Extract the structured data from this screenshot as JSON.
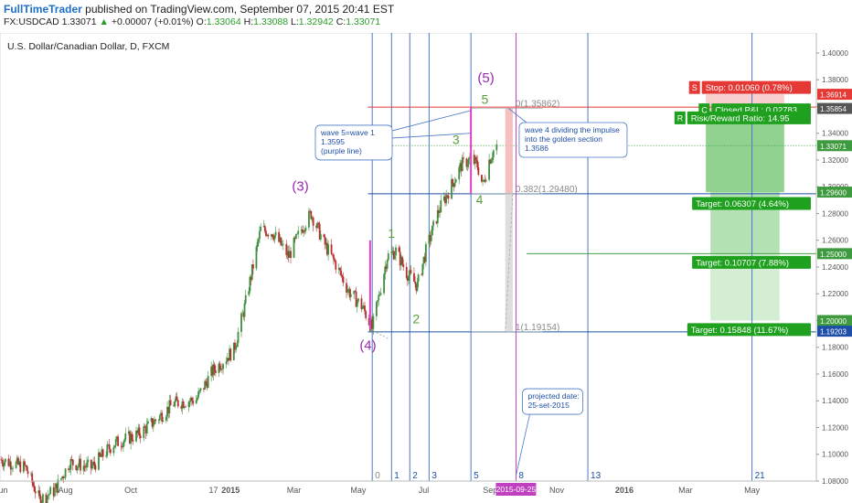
{
  "header": {
    "brand": "FullTimeTrader",
    "published": "published on TradingView.com, September 07, 2015 20:41 EST",
    "symbol": "FX:USDCAD",
    "last": "1.33071",
    "change": "+0.00007 (+0.01%)",
    "open_label": "O:",
    "open": "1.33064",
    "high_label": "H:",
    "high": "1.33088",
    "low_label": "L:",
    "low": "1.32942",
    "close_label": "C:",
    "close": "1.33071"
  },
  "chart_data": {
    "type": "candlestick",
    "title": "U.S. Dollar/Canadian Dollar, D, FXCM",
    "ylim": [
      1.08,
      1.415
    ],
    "y_ticks": [
      1.08,
      1.1,
      1.12,
      1.14,
      1.16,
      1.18,
      1.2,
      1.22,
      1.24,
      1.26,
      1.28,
      1.3,
      1.32,
      1.34,
      1.36,
      1.38,
      1.4
    ],
    "x_start": "2014-06-01",
    "x_end": "2016-07-01",
    "x_ticks": [
      {
        "label": "Jun",
        "date": "2014-06-02"
      },
      {
        "label": "Aug",
        "date": "2014-08-01"
      },
      {
        "label": "Oct",
        "date": "2014-10-01"
      },
      {
        "label": "17",
        "date": "2014-12-17"
      },
      {
        "label": "2015",
        "date": "2015-01-02"
      },
      {
        "label": "Mar",
        "date": "2015-03-02"
      },
      {
        "label": "May",
        "date": "2015-05-01"
      },
      {
        "label": "Jul",
        "date": "2015-07-01"
      },
      {
        "label": "Sep",
        "date": "2015-09-01"
      },
      {
        "label": "Nov",
        "date": "2015-11-02"
      },
      {
        "label": "2016",
        "date": "2016-01-04"
      },
      {
        "label": "Mar",
        "date": "2016-03-01"
      },
      {
        "label": "May",
        "date": "2016-05-02"
      }
    ],
    "date_badge": {
      "date": "2015-09-25",
      "label": "2015-09-25"
    },
    "price_path": [
      [
        "2014-06-02",
        1.096
      ],
      [
        "2014-06-25",
        1.09
      ],
      [
        "2014-07-08",
        1.066
      ],
      [
        "2014-07-22",
        1.073
      ],
      [
        "2014-08-05",
        1.094
      ],
      [
        "2014-08-25",
        1.09
      ],
      [
        "2014-09-15",
        1.108
      ],
      [
        "2014-10-08",
        1.115
      ],
      [
        "2014-10-22",
        1.124
      ],
      [
        "2014-11-10",
        1.138
      ],
      [
        "2014-12-01",
        1.141
      ],
      [
        "2014-12-16",
        1.162
      ],
      [
        "2015-01-05",
        1.178
      ],
      [
        "2015-01-15",
        1.21
      ],
      [
        "2015-01-30",
        1.268
      ],
      [
        "2015-02-10",
        1.266
      ],
      [
        "2015-02-25",
        1.248
      ],
      [
        "2015-03-10",
        1.27
      ],
      [
        "2015-03-18",
        1.28
      ],
      [
        "2015-03-30",
        1.258
      ],
      [
        "2015-04-10",
        1.242
      ],
      [
        "2015-04-22",
        1.222
      ],
      [
        "2015-05-05",
        1.21
      ],
      [
        "2015-05-14",
        1.194
      ],
      [
        "2015-05-28",
        1.248
      ],
      [
        "2015-06-05",
        1.252
      ],
      [
        "2015-06-15",
        1.236
      ],
      [
        "2015-06-25",
        1.226
      ],
      [
        "2015-07-03",
        1.252
      ],
      [
        "2015-07-15",
        1.282
      ],
      [
        "2015-07-30",
        1.306
      ],
      [
        "2015-08-05",
        1.316
      ],
      [
        "2015-08-14",
        1.321
      ],
      [
        "2015-08-20",
        1.316
      ],
      [
        "2015-08-25",
        1.301
      ],
      [
        "2015-08-31",
        1.32
      ],
      [
        "2015-09-04",
        1.327
      ],
      [
        "2015-09-07",
        1.3307
      ]
    ],
    "cycle_lines": [
      {
        "label": "0",
        "date": "2015-05-14"
      },
      {
        "label": "1",
        "date": "2015-06-01"
      },
      {
        "label": "2",
        "date": "2015-06-18"
      },
      {
        "label": "3",
        "date": "2015-07-06"
      },
      {
        "label": "5",
        "date": "2015-08-14"
      },
      {
        "label": "8",
        "date": "2015-09-25"
      },
      {
        "label": "13",
        "date": "2015-12-01"
      },
      {
        "label": "21",
        "date": "2016-05-02"
      }
    ],
    "wave_labels": [
      {
        "text": "(3)",
        "date": "2015-03-08",
        "y": 1.297,
        "color": "#9c27b0",
        "size": 15
      },
      {
        "text": "(4)",
        "date": "2015-05-10",
        "y": 1.178,
        "color": "#9c27b0",
        "size": 15
      },
      {
        "text": "(5)",
        "date": "2015-08-28",
        "y": 1.378,
        "color": "#9c27b0",
        "size": 15
      },
      {
        "text": "1",
        "date": "2015-06-01",
        "y": 1.262,
        "color": "#5a9e3a",
        "size": 14
      },
      {
        "text": "2",
        "date": "2015-06-24",
        "y": 1.198,
        "color": "#5a9e3a",
        "size": 14
      },
      {
        "text": "3",
        "date": "2015-07-31",
        "y": 1.332,
        "color": "#5a9e3a",
        "size": 14
      },
      {
        "text": "4",
        "date": "2015-08-22",
        "y": 1.287,
        "color": "#5a9e3a",
        "size": 14
      },
      {
        "text": "5",
        "date": "2015-08-27",
        "y": 1.362,
        "color": "#5a9e3a",
        "size": 14
      }
    ],
    "wave_segments": [
      {
        "from_date": "2015-05-12",
        "from_y": 1.1935,
        "to_date": "2015-05-12",
        "to_y": 1.26
      },
      {
        "from_date": "2015-08-14",
        "from_y": 1.2948,
        "to_date": "2015-08-14",
        "to_y": 1.3595
      }
    ],
    "fib_levels": [
      {
        "label": "0(1.35862)",
        "value": 1.35862
      },
      {
        "label": "0.382(1.29480)",
        "value": 1.2948
      },
      {
        "label": "1(1.19154)",
        "value": 1.19154
      }
    ],
    "levels": [
      {
        "value": 1.3595,
        "color": "#e53935"
      },
      {
        "value": 1.2948,
        "color": "#1e4fa8"
      },
      {
        "value": 1.19154,
        "color": "#1e4fa8"
      },
      {
        "value": 1.25,
        "color": "#43a047"
      },
      {
        "value": 1.33071,
        "color": "#43a047"
      }
    ],
    "position": {
      "from_date": "2016-03-20",
      "to_date": "2016-06-01",
      "entry": 1.3505,
      "stop": 1.3691,
      "targets": [
        1.296,
        1.25,
        1.2
      ]
    },
    "callouts": [
      {
        "lines": [
          "wave 5=wave 1",
          "1.3595",
          "(purple line)"
        ],
        "date": "2015-03-22",
        "y": 1.346
      },
      {
        "lines": [
          "wave 4 dividing the impulse",
          "into the golden section",
          "1.3586"
        ],
        "date": "2015-09-28",
        "y": 1.348
      },
      {
        "lines": [
          "projected date:",
          "25-set-2015"
        ],
        "date": "2015-10-01",
        "y": 1.149
      }
    ],
    "price_badges": [
      {
        "label": "1.36914",
        "value": 1.36914,
        "color": "#e53935"
      },
      {
        "label": "1.35854",
        "value": 1.35854,
        "color": "#555555"
      },
      {
        "label": "1.33071",
        "value": 1.33071,
        "color": "#3e9a3e"
      },
      {
        "label": "1.29600",
        "value": 1.296,
        "color": "#3e9a3e"
      },
      {
        "label": "1.25000",
        "value": 1.25,
        "color": "#3e9a3e"
      },
      {
        "label": "1.20000",
        "value": 1.2,
        "color": "#3e9a3e"
      },
      {
        "label": "1.19203",
        "value": 1.19203,
        "color": "#1e4fa8"
      }
    ],
    "trade_labels": [
      {
        "text": "Stop: 0.01060 (0.78%)",
        "value": 1.3742,
        "color": "#e53935",
        "kind": "stop"
      },
      {
        "text": "Closed P&L: 0.02783",
        "value": 1.3575,
        "color": "#1fa01f",
        "kind": "green"
      },
      {
        "text": "Risk/Reward Ratio: 14.95",
        "value": 1.3515,
        "color": "#1fa01f",
        "kind": "green"
      },
      {
        "text": "Target: 0.06307 (4.64%)",
        "value": 1.2875,
        "color": "#1fa01f",
        "kind": "green"
      },
      {
        "text": "Target: 0.10707 (7.88%)",
        "value": 1.2435,
        "color": "#1fa01f",
        "kind": "green"
      },
      {
        "text": "Target: 0.15848 (11.67%)",
        "value": 1.1932,
        "color": "#1fa01f",
        "kind": "green"
      }
    ],
    "stub_labels": [
      {
        "text": "S",
        "value": 1.3742,
        "color": "#e53935"
      },
      {
        "text": "C",
        "value": 1.3575,
        "color": "#1fa01f"
      },
      {
        "text": "R",
        "value": 1.3515,
        "color": "#1fa01f"
      }
    ]
  }
}
